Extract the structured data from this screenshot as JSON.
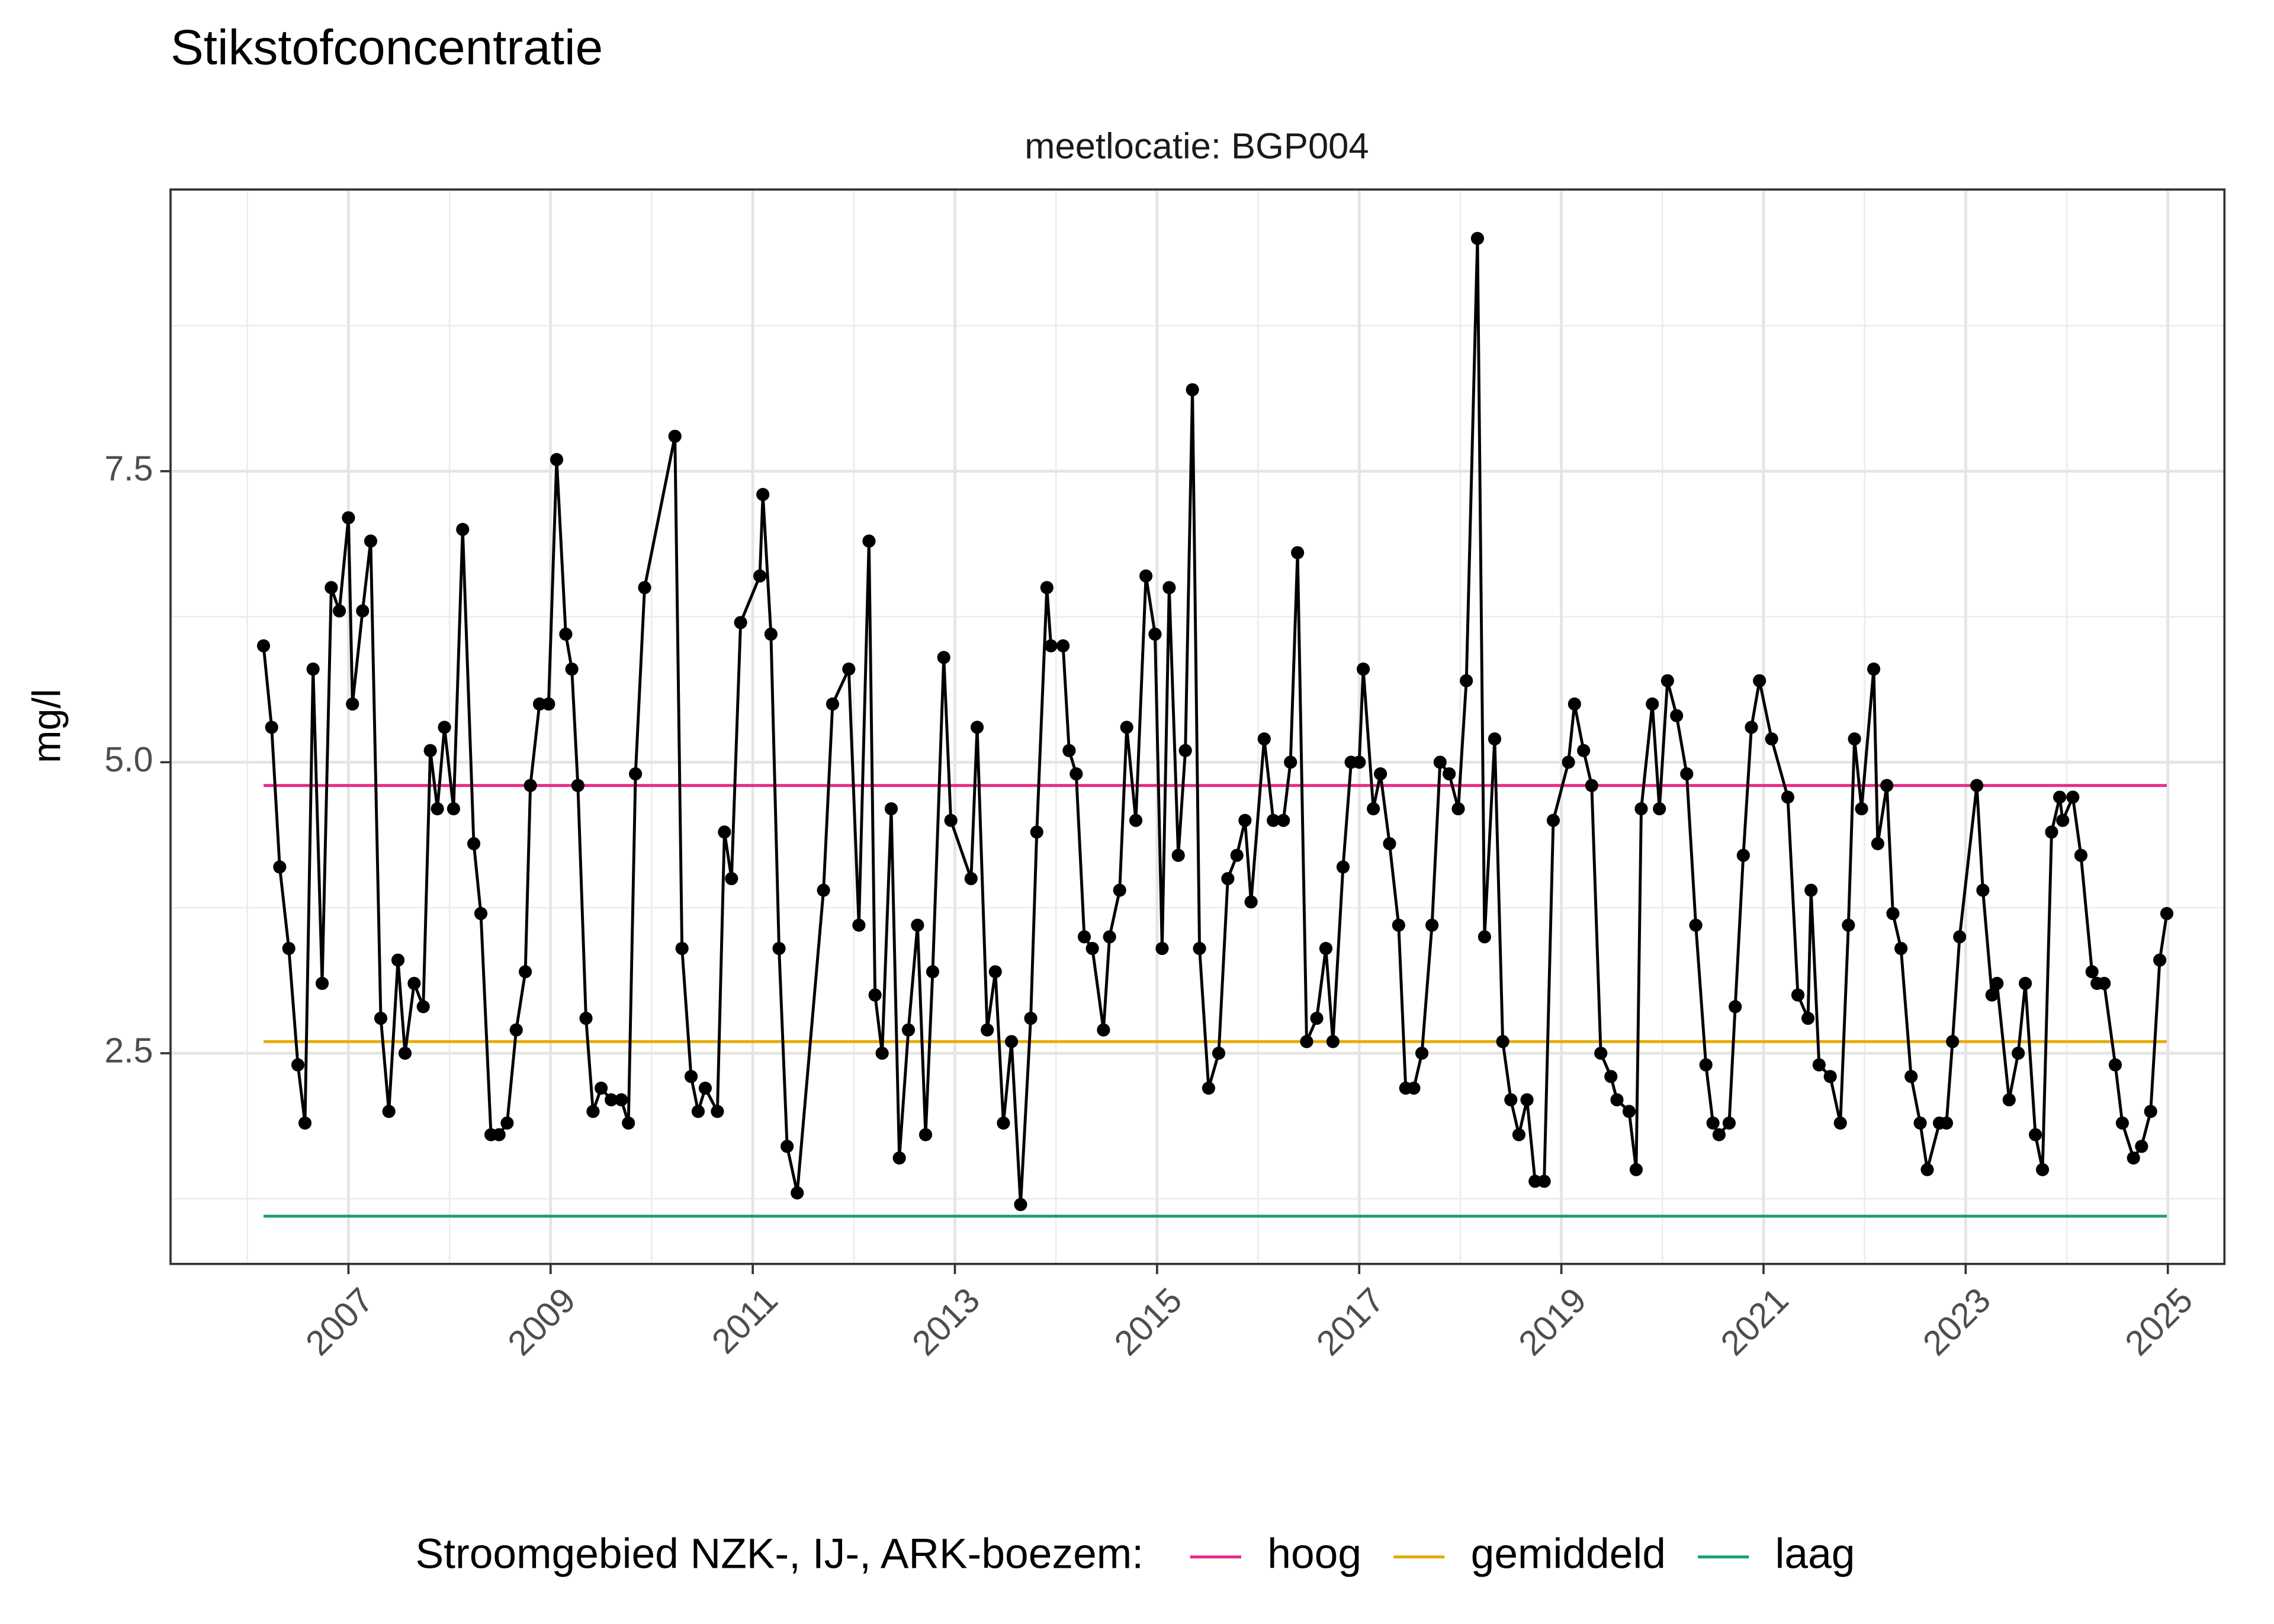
{
  "chart_data": {
    "type": "line",
    "title": "Stikstofconcentratie",
    "subtitle": "meetlocatie: BGP004",
    "ylabel": "mg/l",
    "color": "#000000",
    "x": [
      2006.16,
      2006.24,
      2006.32,
      2006.41,
      2006.5,
      2006.57,
      2006.65,
      2006.74,
      2006.83,
      2006.91,
      2007.0,
      2007.04,
      2007.14,
      2007.22,
      2007.32,
      2007.4,
      2007.49,
      2007.56,
      2007.65,
      2007.74,
      2007.81,
      2007.88,
      2007.95,
      2008.04,
      2008.13,
      2008.24,
      2008.31,
      2008.41,
      2008.49,
      2008.57,
      2008.66,
      2008.75,
      2008.8,
      2008.89,
      2008.98,
      2009.06,
      2009.15,
      2009.21,
      2009.27,
      2009.35,
      2009.42,
      2009.5,
      2009.6,
      2009.7,
      2009.77,
      2009.84,
      2009.93,
      2010.23,
      2010.3,
      2010.39,
      2010.46,
      2010.53,
      2010.65,
      2010.72,
      2010.79,
      2010.88,
      2011.07,
      2011.1,
      2011.18,
      2011.26,
      2011.34,
      2011.44,
      2011.7,
      2011.79,
      2011.95,
      2012.05,
      2012.15,
      2012.21,
      2012.28,
      2012.37,
      2012.45,
      2012.54,
      2012.63,
      2012.71,
      2012.78,
      2012.89,
      2012.96,
      2013.16,
      2013.22,
      2013.32,
      2013.4,
      2013.48,
      2013.56,
      2013.65,
      2013.75,
      2013.81,
      2013.91,
      2013.95,
      2014.07,
      2014.13,
      2014.2,
      2014.28,
      2014.36,
      2014.47,
      2014.53,
      2014.63,
      2014.7,
      2014.79,
      2014.89,
      2014.98,
      2015.05,
      2015.12,
      2015.21,
      2015.28,
      2015.35,
      2015.42,
      2015.51,
      2015.61,
      2015.7,
      2015.79,
      2015.87,
      2015.93,
      2016.06,
      2016.15,
      2016.25,
      2016.32,
      2016.39,
      2016.48,
      2016.58,
      2016.67,
      2016.74,
      2016.84,
      2016.92,
      2017.0,
      2017.04,
      2017.14,
      2017.21,
      2017.3,
      2017.39,
      2017.46,
      2017.54,
      2017.62,
      2017.72,
      2017.8,
      2017.89,
      2017.98,
      2018.06,
      2018.17,
      2018.24,
      2018.34,
      2018.42,
      2018.5,
      2018.58,
      2018.66,
      2018.74,
      2018.83,
      2018.92,
      2019.07,
      2019.13,
      2019.22,
      2019.3,
      2019.39,
      2019.49,
      2019.55,
      2019.67,
      2019.74,
      2019.79,
      2019.9,
      2019.97,
      2020.05,
      2020.14,
      2020.24,
      2020.33,
      2020.43,
      2020.5,
      2020.56,
      2020.66,
      2020.72,
      2020.8,
      2020.88,
      2020.96,
      2021.08,
      2021.24,
      2021.34,
      2021.44,
      2021.47,
      2021.55,
      2021.66,
      2021.76,
      2021.84,
      2021.9,
      2021.97,
      2022.09,
      2022.13,
      2022.22,
      2022.28,
      2022.36,
      2022.46,
      2022.55,
      2022.62,
      2022.74,
      2022.81,
      2022.87,
      2022.94,
      2023.11,
      2023.17,
      2023.26,
      2023.31,
      2023.43,
      2023.52,
      2023.59,
      2023.69,
      2023.76,
      2023.85,
      2023.93,
      2023.96,
      2024.06,
      2024.14,
      2024.25,
      2024.3,
      2024.37,
      2024.48,
      2024.55,
      2024.66,
      2024.74,
      2024.83,
      2024.92,
      2024.99
    ],
    "values": [
      6.0,
      5.3,
      4.1,
      3.4,
      2.4,
      1.9,
      5.8,
      3.1,
      6.5,
      6.3,
      7.1,
      5.5,
      6.3,
      6.9,
      2.8,
      2.0,
      3.3,
      2.5,
      3.1,
      2.9,
      5.1,
      4.6,
      5.3,
      4.6,
      7.0,
      4.3,
      3.7,
      1.8,
      1.8,
      1.9,
      2.7,
      3.2,
      4.8,
      5.5,
      5.5,
      7.6,
      6.1,
      5.8,
      4.8,
      2.8,
      2.0,
      2.2,
      2.1,
      2.1,
      1.9,
      4.9,
      6.5,
      7.8,
      3.4,
      2.3,
      2.0,
      2.2,
      2.0,
      4.4,
      4.0,
      6.2,
      6.6,
      7.3,
      6.1,
      3.4,
      1.7,
      1.3,
      3.9,
      5.5,
      5.8,
      3.6,
      6.9,
      3.0,
      2.5,
      4.6,
      1.6,
      2.7,
      3.6,
      1.8,
      3.2,
      5.9,
      4.5,
      4.0,
      5.3,
      2.7,
      3.2,
      1.9,
      2.6,
      1.2,
      2.8,
      4.4,
      6.5,
      6.0,
      6.0,
      5.1,
      4.9,
      3.5,
      3.4,
      2.7,
      3.5,
      3.9,
      5.3,
      4.5,
      6.6,
      6.1,
      3.4,
      6.5,
      4.2,
      5.1,
      8.2,
      3.4,
      2.2,
      2.5,
      4.0,
      4.2,
      4.5,
      3.8,
      5.2,
      4.5,
      4.5,
      5.0,
      6.8,
      2.6,
      2.8,
      3.4,
      2.6,
      4.1,
      5.0,
      5.0,
      5.8,
      4.6,
      4.9,
      4.3,
      3.6,
      2.2,
      2.2,
      2.5,
      3.6,
      5.0,
      4.9,
      4.6,
      5.7,
      9.5,
      3.5,
      5.2,
      2.6,
      2.1,
      1.8,
      2.1,
      1.4,
      1.4,
      4.5,
      5.0,
      5.5,
      5.1,
      4.8,
      2.5,
      2.3,
      2.1,
      2.0,
      1.5,
      4.6,
      5.5,
      4.6,
      5.7,
      5.4,
      4.9,
      3.6,
      2.4,
      1.9,
      1.8,
      1.9,
      2.9,
      4.2,
      5.3,
      5.7,
      5.2,
      4.7,
      3.0,
      2.8,
      3.9,
      2.4,
      2.3,
      1.9,
      3.6,
      5.2,
      4.6,
      5.8,
      4.3,
      4.8,
      3.7,
      3.4,
      2.3,
      1.9,
      1.5,
      1.9,
      1.9,
      2.6,
      3.5,
      4.8,
      3.9,
      3.0,
      3.1,
      2.1,
      2.5,
      3.1,
      1.8,
      1.5,
      4.4,
      4.7,
      4.5,
      4.7,
      4.2,
      3.2,
      3.1,
      3.1,
      2.4,
      1.9,
      1.6,
      1.7,
      2.0,
      3.3,
      3.7
    ],
    "reference_lines": [
      {
        "name": "hoog",
        "value": 4.8,
        "color": "#e7298a"
      },
      {
        "name": "gemiddeld",
        "value": 2.6,
        "color": "#e6ab02"
      },
      {
        "name": "laag",
        "value": 1.1,
        "color": "#1b9e77"
      }
    ],
    "legend_title": "Stroomgebied NZK-, IJ-, ARK-boezem:",
    "legend": "bottom",
    "xlim": [
      2005.24,
      2025.56
    ],
    "xticks": [
      2007,
      2009,
      2011,
      2013,
      2015,
      2017,
      2019,
      2021,
      2023,
      2025
    ],
    "xminorticks": [
      2006,
      2008,
      2010,
      2012,
      2014,
      2016,
      2018,
      2020,
      2022,
      2024
    ],
    "ylim": [
      0.69,
      9.92
    ],
    "yticks": [
      {
        "value": 2.5,
        "label": "2.5"
      },
      {
        "value": 5,
        "label": "5.0"
      },
      7.5
    ],
    "yminorticks": [
      1.25,
      3.75,
      6.25,
      8.75
    ],
    "grid": true
  }
}
